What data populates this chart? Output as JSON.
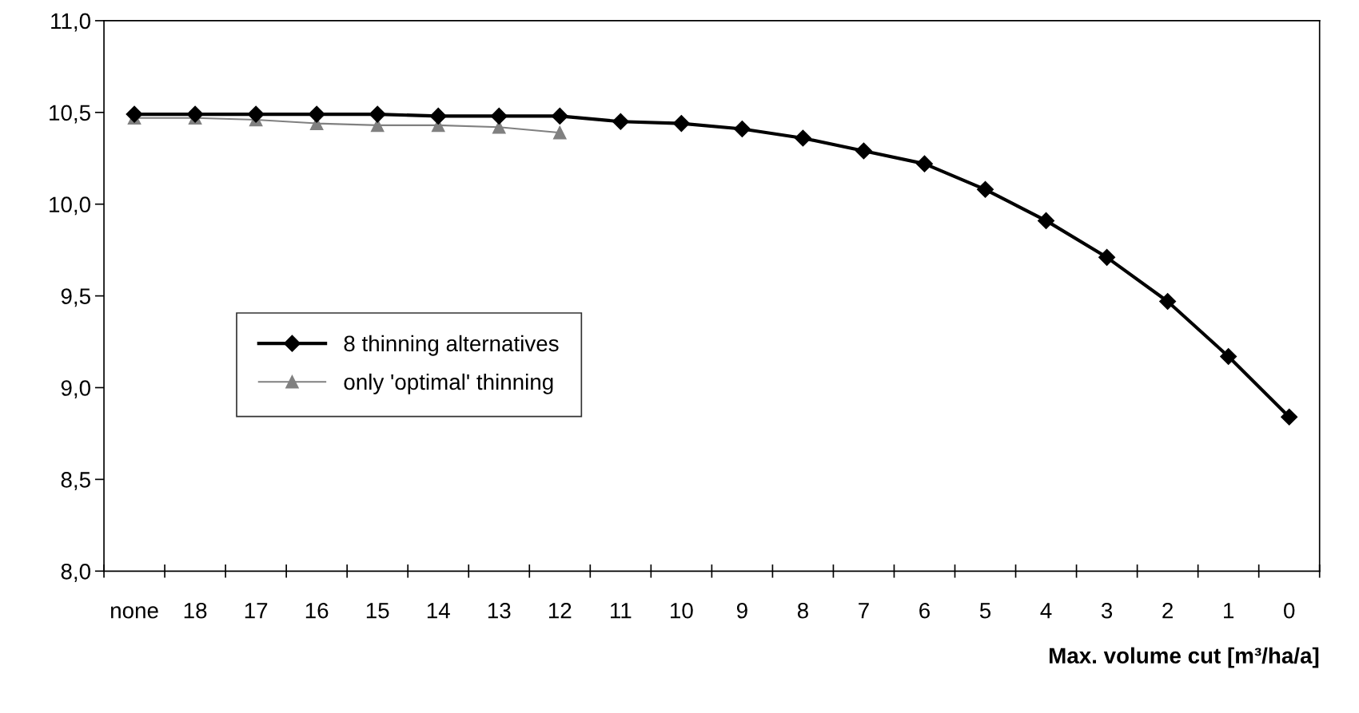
{
  "chart_data": {
    "type": "line",
    "xlabel": "Max. volume cut [m³/ha/a]",
    "categories": [
      "none",
      "18",
      "17",
      "16",
      "15",
      "14",
      "13",
      "12",
      "11",
      "10",
      "9",
      "8",
      "7",
      "6",
      "5",
      "4",
      "3",
      "2",
      "1",
      "0"
    ],
    "series": [
      {
        "name": "8 thinning alternatives",
        "color": "#000000",
        "marker": "diamond",
        "values": [
          10.49,
          10.49,
          10.49,
          10.49,
          10.49,
          10.48,
          10.48,
          10.48,
          10.45,
          10.44,
          10.41,
          10.36,
          10.29,
          10.22,
          10.08,
          9.91,
          9.71,
          9.47,
          9.17,
          8.84
        ]
      },
      {
        "name": "only 'optimal' thinning",
        "color": "#808080",
        "marker": "triangle",
        "values": [
          10.47,
          10.47,
          10.46,
          10.44,
          10.43,
          10.43,
          10.42,
          10.39,
          null,
          null,
          null,
          null,
          null,
          null,
          null,
          null,
          null,
          null,
          null,
          null
        ]
      }
    ],
    "ylim": [
      8.0,
      11.0
    ],
    "yticks": [
      {
        "value": 8.0,
        "label": "8,0"
      },
      {
        "value": 8.5,
        "label": "8,5"
      },
      {
        "value": 9.0,
        "label": "9,0"
      },
      {
        "value": 9.5,
        "label": "9,5"
      },
      {
        "value": 10.0,
        "label": "10,0"
      },
      {
        "value": 10.5,
        "label": "10,5"
      },
      {
        "value": 11.0,
        "label": "11,0"
      }
    ],
    "grid": false,
    "legend": "center left",
    "line_style": "solid"
  }
}
